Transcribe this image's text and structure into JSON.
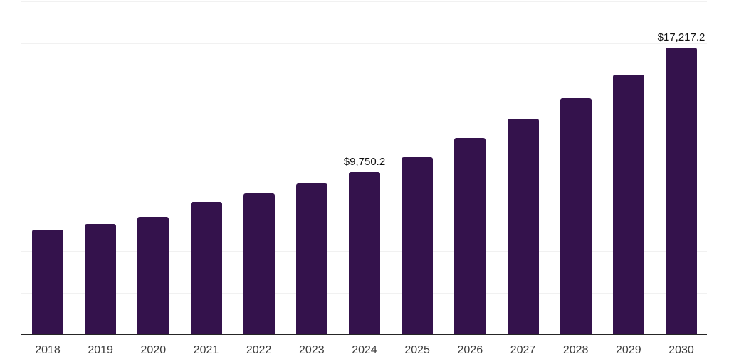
{
  "chart_data": {
    "type": "bar",
    "title": "",
    "xlabel": "",
    "ylabel": "",
    "categories": [
      "2018",
      "2019",
      "2020",
      "2021",
      "2022",
      "2023",
      "2024",
      "2025",
      "2026",
      "2027",
      "2028",
      "2029",
      "2030"
    ],
    "values": [
      6300,
      6630,
      7040,
      7930,
      8460,
      9060,
      9750.2,
      10660,
      11780,
      12950,
      14180,
      15600,
      17217.2
    ],
    "value_labels": [
      "",
      "",
      "",
      "",
      "",
      "",
      "$9,750.2",
      "",
      "",
      "",
      "",
      "",
      "$17,217.2"
    ],
    "ylim": [
      0,
      20000
    ],
    "gridline_interval": 2500,
    "grid": "horizontal only, no y-axis tick labels",
    "legend": "none",
    "colors": {
      "bar": "#34124C",
      "grid_line": "#F1F1F1",
      "axis_line": "#262626",
      "tick_label": "#3D3D3D",
      "data_label": "#111111",
      "background": "#FFFFFF"
    }
  }
}
